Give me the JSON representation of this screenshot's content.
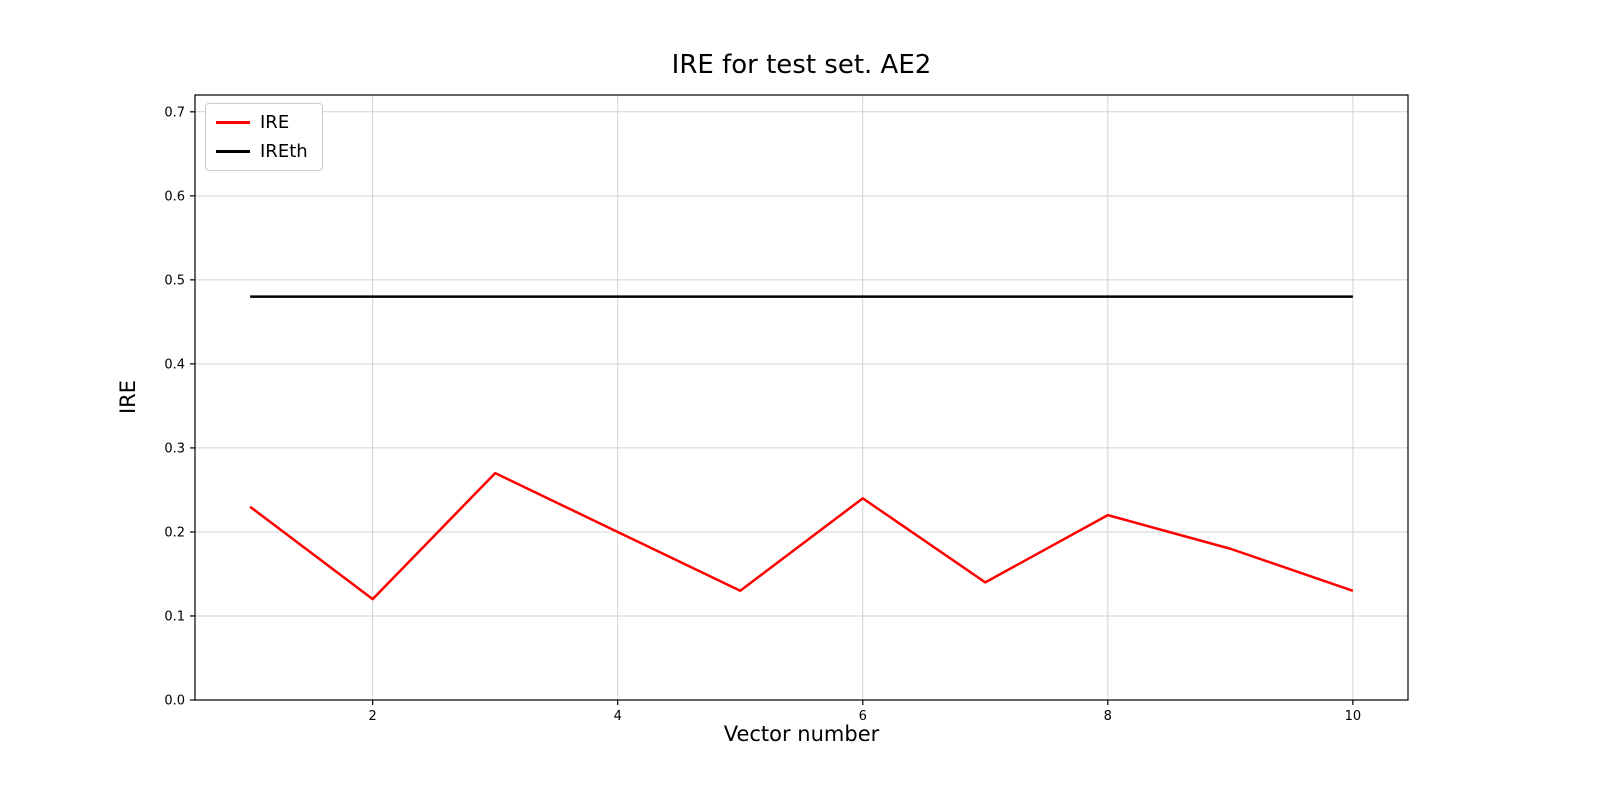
{
  "chart_data": {
    "type": "line",
    "title": "IRE for test set. AE2",
    "xlabel": "Vector number",
    "ylabel": "IRE",
    "x": [
      1,
      2,
      3,
      4,
      5,
      6,
      7,
      8,
      9,
      10
    ],
    "series": [
      {
        "name": "IRE",
        "color": "#ff0000",
        "values": [
          0.23,
          0.12,
          0.27,
          0.2,
          0.13,
          0.24,
          0.14,
          0.22,
          0.18,
          0.13
        ]
      },
      {
        "name": "IREth",
        "color": "#000000",
        "values": [
          0.48,
          0.48,
          0.48,
          0.48,
          0.48,
          0.48,
          0.48,
          0.48,
          0.48,
          0.48
        ]
      }
    ],
    "xlim": [
      0.55,
      10.45
    ],
    "ylim": [
      0.0,
      0.72
    ],
    "xticks": [
      2,
      4,
      6,
      8,
      10
    ],
    "yticks": [
      0.0,
      0.1,
      0.2,
      0.3,
      0.4,
      0.5,
      0.6,
      0.7
    ],
    "grid": true,
    "grid_color": "#d3d3d3",
    "axes_color": "#000000",
    "legend_position": "upper left"
  }
}
